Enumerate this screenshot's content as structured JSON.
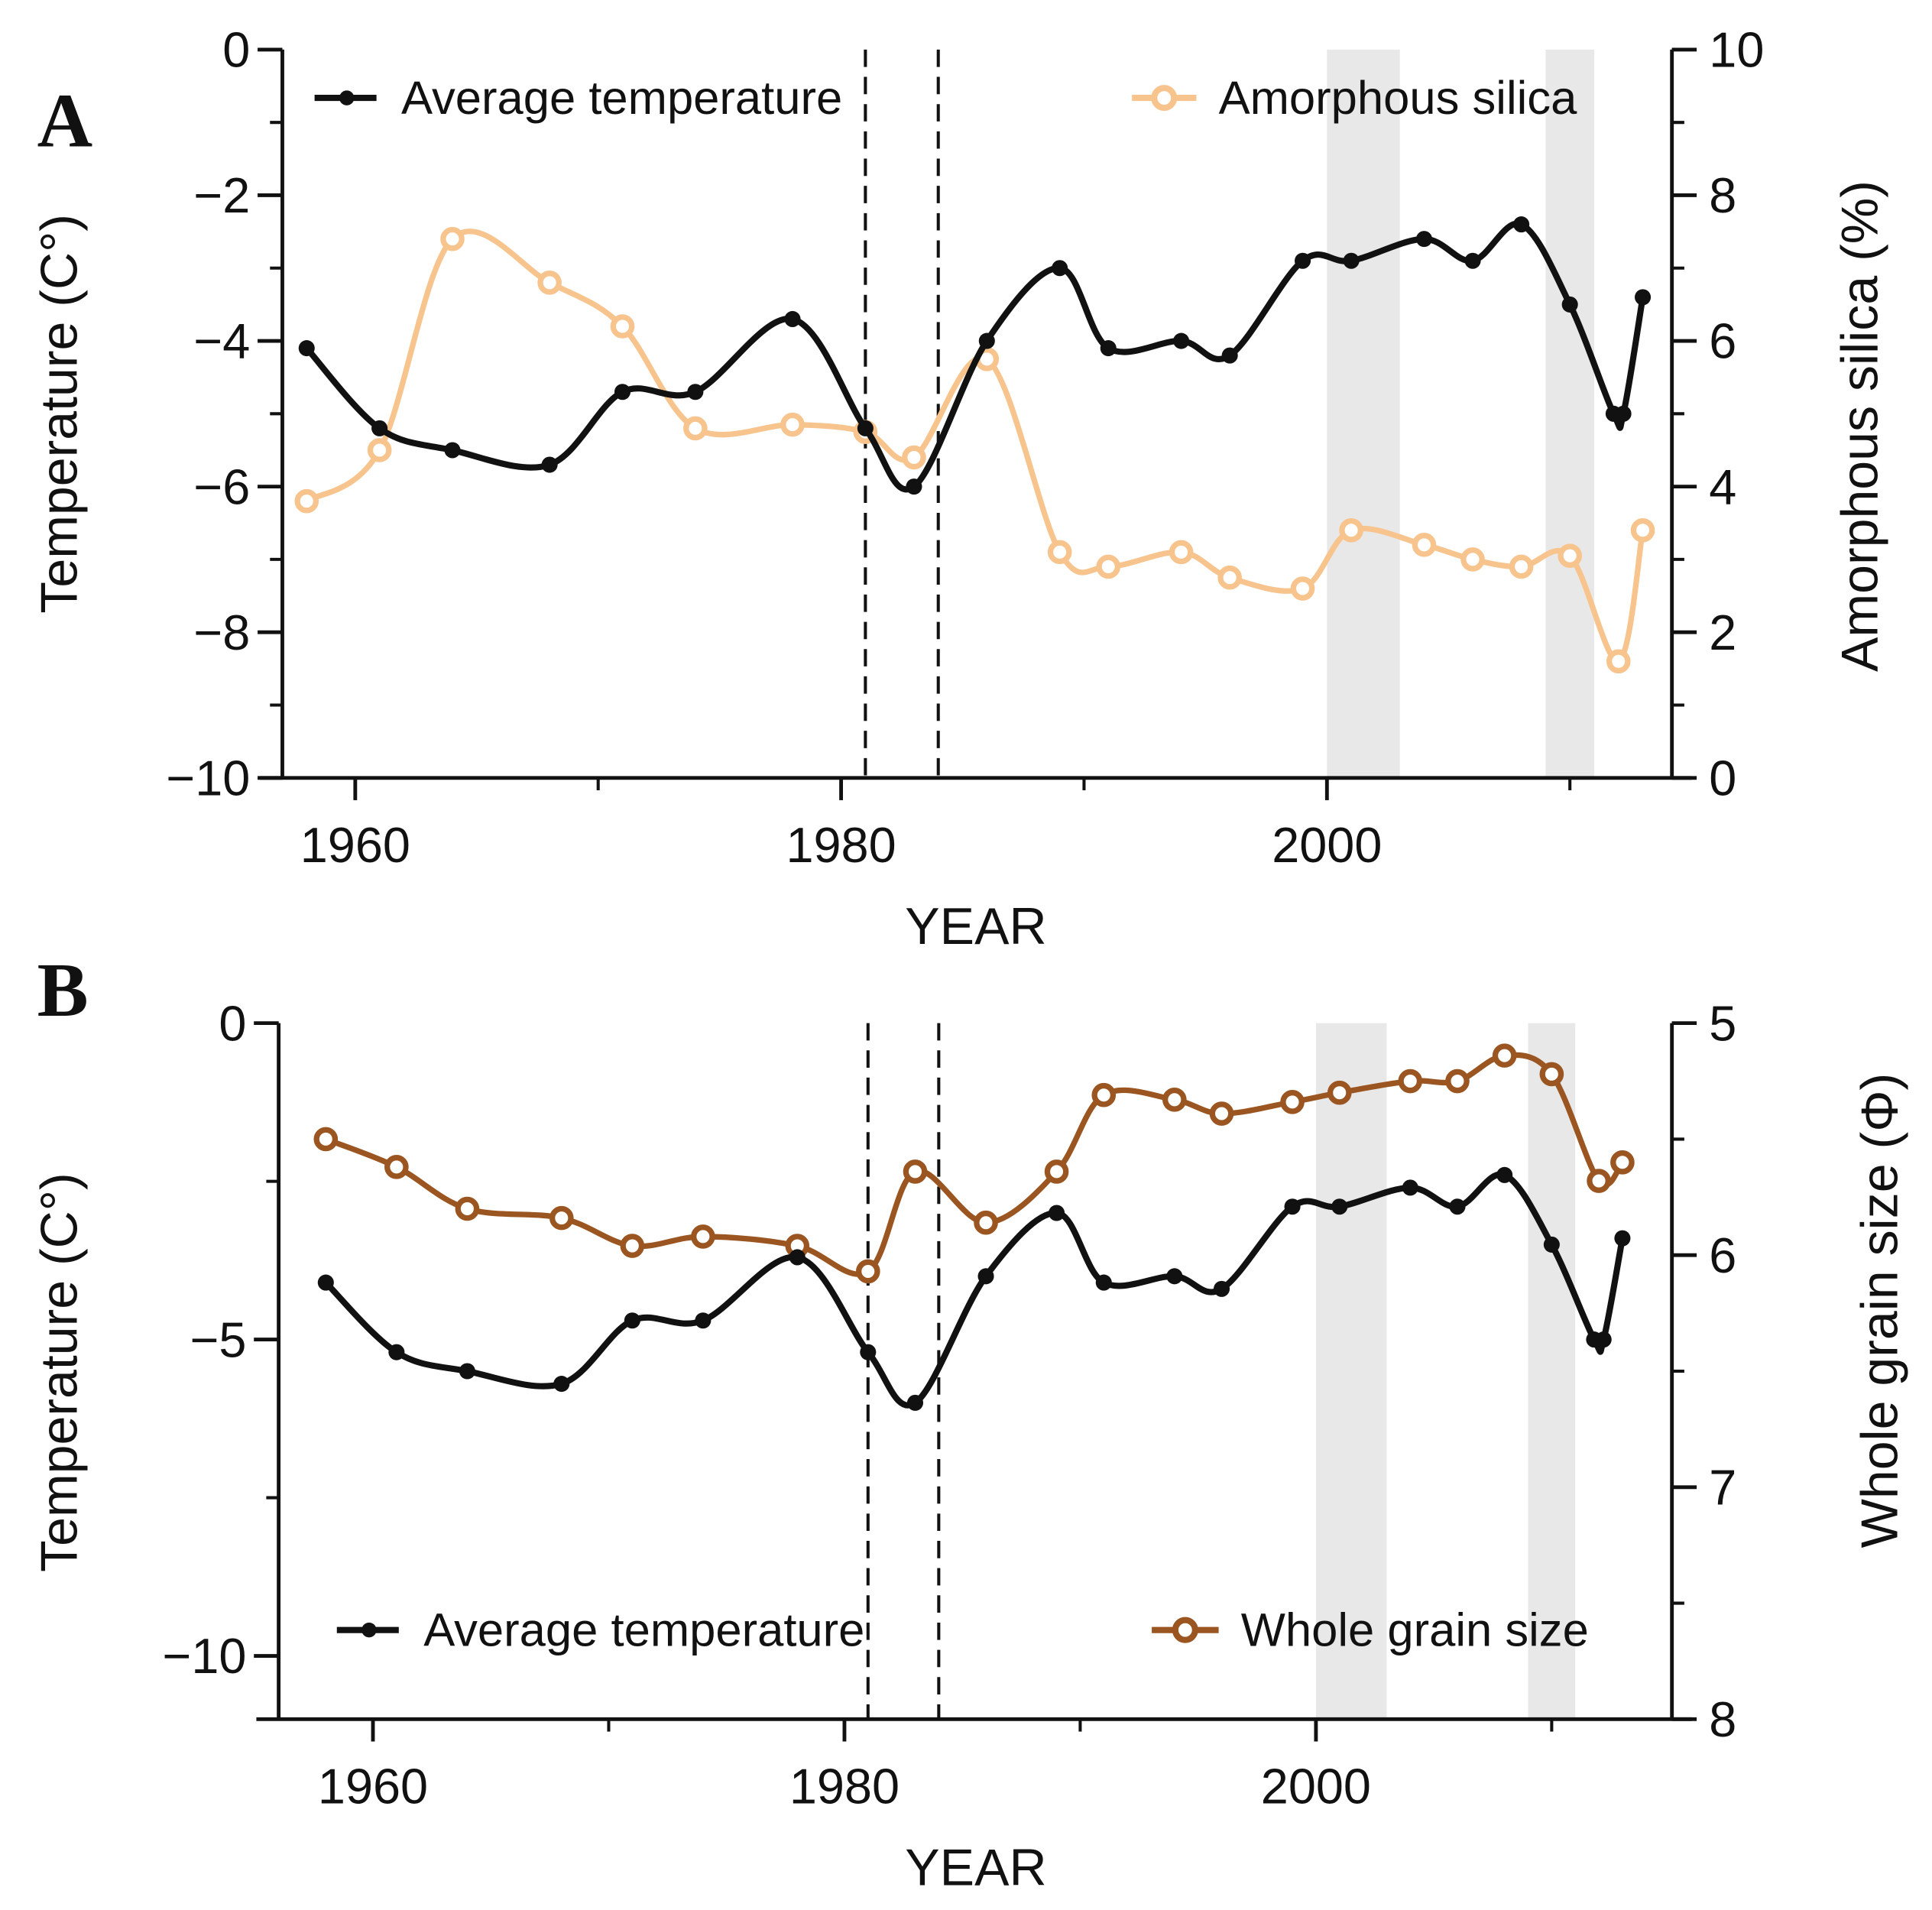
{
  "chart_data": [
    {
      "type": "line",
      "panel_label": "A",
      "xlabel": "YEAR",
      "ylabel": "Temperature (C°)",
      "y2label": "Amorphous silica (%)",
      "xlim": [
        1957,
        2014.2
      ],
      "ylim": [
        -10,
        0
      ],
      "y2lim": [
        0,
        10
      ],
      "xticks": [
        1960,
        1980,
        2000
      ],
      "yticks": [
        0,
        -2,
        -4,
        -6,
        -8,
        -10
      ],
      "y2ticks": [
        10,
        8,
        6,
        4,
        2,
        0
      ],
      "shaded_periods": [
        [
          2000,
          2003
        ],
        [
          2009,
          2011
        ]
      ],
      "dashed_years": [
        1981,
        1984
      ],
      "legend": [
        {
          "label": "Average temperature",
          "placement": "top-left"
        },
        {
          "label": "Amorphous silica",
          "placement": "top-right"
        }
      ],
      "series": [
        {
          "name": "Average temperature",
          "axis": "left",
          "color": "#111111",
          "marker": "filled",
          "x": [
            1958,
            1961,
            1964,
            1968,
            1971,
            1974,
            1978,
            1981,
            1983,
            1986,
            1989,
            1991,
            1994,
            1996,
            1999,
            2001,
            2004,
            2006,
            2008,
            2010,
            2011.8,
            2012.2,
            2013
          ],
          "y": [
            -4.1,
            -5.2,
            -5.5,
            -5.7,
            -4.7,
            -4.7,
            -3.7,
            -5.2,
            -6.0,
            -4.0,
            -3.0,
            -4.1,
            -4.0,
            -4.2,
            -2.9,
            -2.9,
            -2.6,
            -2.9,
            -2.4,
            -3.5,
            -5.0,
            -5.0,
            -3.4
          ]
        },
        {
          "name": "Amorphous silica",
          "axis": "right",
          "color": "#f8c48e",
          "marker": "open",
          "x": [
            1958,
            1961,
            1964,
            1968,
            1971,
            1974,
            1978,
            1981,
            1983,
            1986,
            1989,
            1991,
            1994,
            1996,
            1999,
            2001,
            2004,
            2006,
            2008,
            2010,
            2012,
            2013
          ],
          "y": [
            3.8,
            4.5,
            7.4,
            6.8,
            6.2,
            4.8,
            4.85,
            4.75,
            4.4,
            5.75,
            3.1,
            2.9,
            3.1,
            2.75,
            2.6,
            3.4,
            3.2,
            3.0,
            2.9,
            3.05,
            1.6,
            3.4
          ]
        }
      ]
    },
    {
      "type": "line",
      "panel_label": "B",
      "xlabel": "YEAR",
      "ylabel": "Temperature (C°)",
      "y2label": "Whole grain size  (Φ)",
      "xlim": [
        1956,
        2015.1
      ],
      "ylim": [
        -11,
        0
      ],
      "y2lim": [
        8,
        5
      ],
      "xticks": [
        1960,
        1980,
        2000
      ],
      "yticks": [
        0,
        -5,
        -10
      ],
      "y2ticks": [
        5,
        6,
        7,
        8
      ],
      "shaded_periods": [
        [
          2000,
          2003
        ],
        [
          2009,
          2011
        ]
      ],
      "dashed_years": [
        1981,
        1984
      ],
      "legend": [
        {
          "label": "Average temperature",
          "placement": "bottom-left"
        },
        {
          "label": "Whole grain size",
          "placement": "bottom-right"
        }
      ],
      "series": [
        {
          "name": "Average temperature",
          "axis": "left",
          "color": "#111111",
          "marker": "filled",
          "x": [
            1958,
            1961,
            1964,
            1968,
            1971,
            1974,
            1978,
            1981,
            1983,
            1986,
            1989,
            1991,
            1994,
            1996,
            1999,
            2001,
            2004,
            2006,
            2008,
            2010,
            2011.8,
            2012.2,
            2013
          ],
          "y": [
            -4.1,
            -5.2,
            -5.5,
            -5.7,
            -4.7,
            -4.7,
            -3.7,
            -5.2,
            -6.0,
            -4.0,
            -3.0,
            -4.1,
            -4.0,
            -4.2,
            -2.9,
            -2.9,
            -2.6,
            -2.9,
            -2.4,
            -3.5,
            -5.0,
            -5.0,
            -3.4
          ]
        },
        {
          "name": "Whole grain size",
          "axis": "right",
          "color": "#9a5520",
          "marker": "open",
          "x": [
            1958,
            1961,
            1964,
            1968,
            1971,
            1974,
            1978,
            1981,
            1983,
            1986,
            1989,
            1991,
            1994,
            1996,
            1999,
            2001,
            2004,
            2006,
            2008,
            2010,
            2012,
            2013
          ],
          "y": [
            5.5,
            5.62,
            5.8,
            5.84,
            5.96,
            5.92,
            5.96,
            6.07,
            5.64,
            5.86,
            5.64,
            5.31,
            5.33,
            5.39,
            5.34,
            5.3,
            5.25,
            5.25,
            5.14,
            5.22,
            5.68,
            5.6
          ]
        }
      ]
    }
  ]
}
